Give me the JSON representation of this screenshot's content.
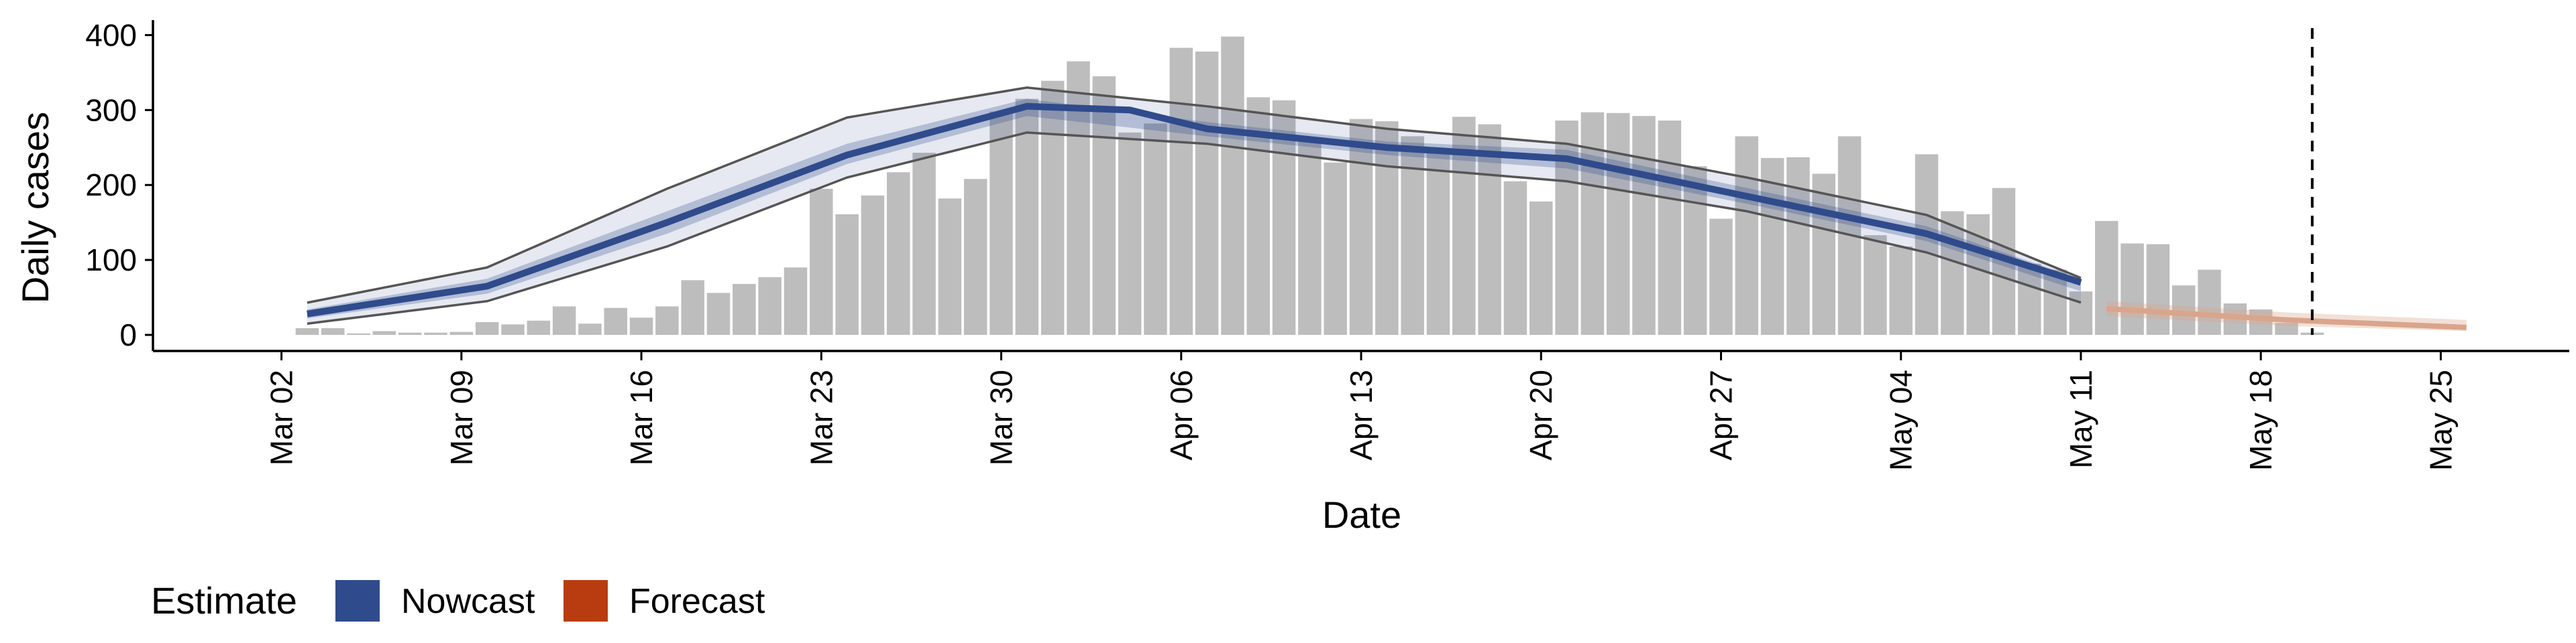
{
  "chart_data": {
    "type": "bar",
    "xlabel": "Date",
    "ylabel": "Daily cases",
    "ylim": [
      0,
      420
    ],
    "yticks": [
      0,
      100,
      200,
      300,
      400
    ],
    "xrange": [
      "2020-02-26",
      "2020-05-30"
    ],
    "xtick_dates": [
      "2020-03-02",
      "2020-03-09",
      "2020-03-16",
      "2020-03-23",
      "2020-03-30",
      "2020-04-06",
      "2020-04-13",
      "2020-04-20",
      "2020-04-27",
      "2020-05-04",
      "2020-05-11",
      "2020-05-18",
      "2020-05-25"
    ],
    "xtick_labels": [
      "Mar 02",
      "Mar 09",
      "Mar 16",
      "Mar 23",
      "Mar 30",
      "Apr 06",
      "Apr 13",
      "Apr 20",
      "Apr 27",
      "May 04",
      "May 11",
      "May 18",
      "May 25"
    ],
    "bars": {
      "start_date": "2020-03-03",
      "values": [
        9,
        9,
        2,
        5,
        3,
        3,
        4,
        17,
        14,
        19,
        38,
        15,
        36,
        23,
        38,
        73,
        56,
        68,
        77,
        90,
        195,
        161,
        186,
        217,
        243,
        182,
        208,
        298,
        315,
        339,
        365,
        345,
        270,
        282,
        383,
        378,
        398,
        317,
        313,
        258,
        230,
        288,
        285,
        265,
        248,
        291,
        281,
        205,
        178,
        286,
        297,
        296,
        292,
        286,
        225,
        155,
        265,
        236,
        237,
        215,
        265,
        133,
        118,
        241,
        165,
        161,
        196,
        95,
        87,
        58,
        152,
        122,
        121,
        66,
        87,
        42,
        34,
        16,
        3
      ],
      "color": "#bdbdbd"
    },
    "estimate_line_color": "#555555",
    "nowcast": {
      "start_date": "2020-03-03",
      "end_date": "2020-05-11",
      "median": [
        [
          0,
          28
        ],
        [
          7,
          65
        ],
        [
          14,
          150
        ],
        [
          21,
          240
        ],
        [
          28,
          305
        ],
        [
          32,
          300
        ],
        [
          35,
          275
        ],
        [
          42,
          250
        ],
        [
          49,
          235
        ],
        [
          56,
          185
        ],
        [
          63,
          135
        ],
        [
          69,
          70
        ],
        [
          70,
          55
        ]
      ],
      "lower50": [
        [
          0,
          22
        ],
        [
          7,
          55
        ],
        [
          14,
          135
        ],
        [
          21,
          228
        ],
        [
          28,
          292
        ],
        [
          35,
          265
        ],
        [
          42,
          240
        ],
        [
          49,
          222
        ],
        [
          56,
          175
        ],
        [
          63,
          125
        ],
        [
          70,
          47
        ]
      ],
      "upper50": [
        [
          0,
          34
        ],
        [
          7,
          75
        ],
        [
          14,
          165
        ],
        [
          21,
          255
        ],
        [
          28,
          315
        ],
        [
          35,
          284
        ],
        [
          42,
          258
        ],
        [
          49,
          247
        ],
        [
          56,
          196
        ],
        [
          63,
          145
        ],
        [
          70,
          63
        ]
      ],
      "lower90": [
        [
          0,
          15
        ],
        [
          7,
          45
        ],
        [
          14,
          118
        ],
        [
          21,
          210
        ],
        [
          28,
          270
        ],
        [
          35,
          255
        ],
        [
          42,
          225
        ],
        [
          49,
          205
        ],
        [
          56,
          165
        ],
        [
          63,
          110
        ],
        [
          70,
          32
        ]
      ],
      "upper90": [
        [
          0,
          43
        ],
        [
          7,
          90
        ],
        [
          14,
          195
        ],
        [
          21,
          290
        ],
        [
          28,
          330
        ],
        [
          35,
          305
        ],
        [
          42,
          275
        ],
        [
          49,
          255
        ],
        [
          56,
          210
        ],
        [
          63,
          160
        ],
        [
          70,
          62
        ]
      ],
      "color": "#2f4b8c"
    },
    "forecast": {
      "start_date": "2020-05-12",
      "end_date": "2020-05-26",
      "median": [
        [
          0,
          35
        ],
        [
          7,
          20
        ],
        [
          14,
          10
        ]
      ],
      "lower": [
        [
          0,
          25
        ],
        [
          7,
          12
        ],
        [
          14,
          5
        ]
      ],
      "upper": [
        [
          0,
          45
        ],
        [
          7,
          30
        ],
        [
          14,
          20
        ]
      ],
      "color": "#d9a58c"
    },
    "vline_date": "2020-05-20",
    "legend": {
      "title": "Estimate",
      "items": [
        {
          "label": "Nowcast",
          "color": "#2f4b8c"
        },
        {
          "label": "Forecast",
          "color": "#b83c10"
        }
      ],
      "position": "bottom-left"
    }
  }
}
